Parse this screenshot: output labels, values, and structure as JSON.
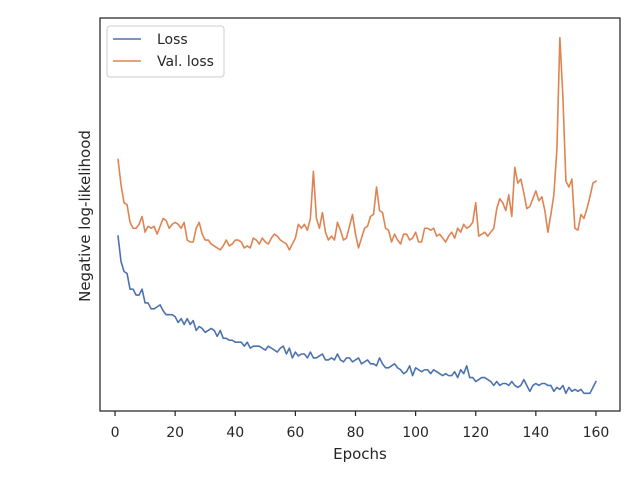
{
  "chart_data": {
    "type": "line",
    "xlabel": "Epochs",
    "ylabel": "Negative log-likelihood",
    "xlim": [
      -5,
      168
    ],
    "ylim": [
      0,
      100
    ],
    "xticks": [
      0,
      20,
      40,
      60,
      80,
      100,
      120,
      140,
      160
    ],
    "yticks_labeled": false,
    "grid": false,
    "legend_position": "top-left",
    "series": [
      {
        "name": "Loss",
        "color": "#4c72b0",
        "x": [
          1,
          2,
          3,
          4,
          5,
          6,
          7,
          8,
          9,
          10,
          11,
          12,
          13,
          14,
          15,
          16,
          17,
          18,
          19,
          20,
          21,
          22,
          23,
          24,
          25,
          26,
          27,
          28,
          29,
          30,
          31,
          32,
          33,
          34,
          35,
          36,
          37,
          38,
          39,
          40,
          41,
          42,
          43,
          44,
          45,
          46,
          47,
          48,
          49,
          50,
          51,
          52,
          53,
          54,
          55,
          56,
          57,
          58,
          59,
          60,
          61,
          62,
          63,
          64,
          65,
          66,
          67,
          68,
          69,
          70,
          71,
          72,
          73,
          74,
          75,
          76,
          77,
          78,
          79,
          80,
          81,
          82,
          83,
          84,
          85,
          86,
          87,
          88,
          89,
          90,
          91,
          92,
          93,
          94,
          95,
          96,
          97,
          98,
          99,
          100,
          101,
          102,
          103,
          104,
          105,
          106,
          107,
          108,
          109,
          110,
          111,
          112,
          113,
          114,
          115,
          116,
          117,
          118,
          119,
          120,
          121,
          122,
          123,
          124,
          125,
          126,
          127,
          128,
          129,
          130,
          131,
          132,
          133,
          134,
          135,
          136,
          137,
          138,
          139,
          140,
          141,
          142,
          143,
          144,
          145,
          146,
          147,
          148,
          149,
          150,
          151,
          152,
          153,
          154,
          155,
          156,
          157,
          158,
          159,
          160
        ],
        "values": [
          44.5,
          38.0,
          35.5,
          35.0,
          31.0,
          31.0,
          29.5,
          29.5,
          31.0,
          27.5,
          27.5,
          26.0,
          26.0,
          26.5,
          27.0,
          25.5,
          24.5,
          24.5,
          24.5,
          24.0,
          22.5,
          23.5,
          22.0,
          23.5,
          22.0,
          23.0,
          20.5,
          21.5,
          21.0,
          20.0,
          20.5,
          21.0,
          20.5,
          19.0,
          20.5,
          18.5,
          18.5,
          18.0,
          18.0,
          17.5,
          17.5,
          17.5,
          16.5,
          17.5,
          16.0,
          16.5,
          16.5,
          16.5,
          16.0,
          15.5,
          16.5,
          16.0,
          15.5,
          15.0,
          16.0,
          16.5,
          14.5,
          16.0,
          13.5,
          15.0,
          14.0,
          14.5,
          14.5,
          13.5,
          15.0,
          13.5,
          13.5,
          14.0,
          14.5,
          13.0,
          13.0,
          13.5,
          13.0,
          14.5,
          13.0,
          12.5,
          13.5,
          13.5,
          12.5,
          13.0,
          13.5,
          12.0,
          12.5,
          13.0,
          12.0,
          12.0,
          11.5,
          13.5,
          12.0,
          11.0,
          11.0,
          11.5,
          12.0,
          11.0,
          10.5,
          9.5,
          10.0,
          11.5,
          9.0,
          11.0,
          10.5,
          10.0,
          10.5,
          10.5,
          9.5,
          10.5,
          10.0,
          9.5,
          9.0,
          9.5,
          9.0,
          9.0,
          10.0,
          8.5,
          10.5,
          9.5,
          11.5,
          8.5,
          8.5,
          7.5,
          8.0,
          8.5,
          8.5,
          8.0,
          7.5,
          6.5,
          7.5,
          6.5,
          7.0,
          7.0,
          6.5,
          7.5,
          6.5,
          6.0,
          6.5,
          8.0,
          6.5,
          5.0,
          6.5,
          7.0,
          6.5,
          7.0,
          7.0,
          6.5,
          6.5,
          5.0,
          6.0,
          5.5,
          6.5,
          4.5,
          6.0,
          5.0,
          5.5,
          5.0,
          5.5,
          4.5,
          4.5,
          4.5,
          6.0,
          7.5
        ]
      },
      {
        "name": "Val. loss",
        "color": "#dd8452",
        "x": [
          1,
          2,
          3,
          4,
          5,
          6,
          7,
          8,
          9,
          10,
          11,
          12,
          13,
          14,
          15,
          16,
          17,
          18,
          19,
          20,
          21,
          22,
          23,
          24,
          25,
          26,
          27,
          28,
          29,
          30,
          31,
          32,
          33,
          34,
          35,
          36,
          37,
          38,
          39,
          40,
          41,
          42,
          43,
          44,
          45,
          46,
          47,
          48,
          49,
          50,
          51,
          52,
          53,
          54,
          55,
          56,
          57,
          58,
          59,
          60,
          61,
          62,
          63,
          64,
          65,
          66,
          67,
          68,
          69,
          70,
          71,
          72,
          73,
          74,
          75,
          76,
          77,
          78,
          79,
          80,
          81,
          82,
          83,
          84,
          85,
          86,
          87,
          88,
          89,
          90,
          91,
          92,
          93,
          94,
          95,
          96,
          97,
          98,
          99,
          100,
          101,
          102,
          103,
          104,
          105,
          106,
          107,
          108,
          109,
          110,
          111,
          112,
          113,
          114,
          115,
          116,
          117,
          118,
          119,
          120,
          121,
          122,
          123,
          124,
          125,
          126,
          127,
          128,
          129,
          130,
          131,
          132,
          133,
          134,
          135,
          136,
          137,
          138,
          139,
          140,
          141,
          142,
          143,
          144,
          145,
          146,
          147,
          148,
          149,
          150,
          151,
          152,
          153,
          154,
          155,
          156,
          157,
          158,
          159,
          160
        ],
        "values": [
          64.0,
          57.5,
          53.0,
          52.5,
          48.0,
          46.5,
          46.5,
          47.5,
          49.5,
          45.5,
          47.0,
          46.5,
          47.0,
          45.0,
          47.0,
          49.0,
          48.5,
          46.5,
          47.5,
          48.0,
          47.5,
          46.5,
          48.0,
          43.5,
          43.0,
          43.0,
          46.5,
          48.0,
          45.0,
          43.5,
          43.5,
          42.5,
          42.0,
          41.5,
          41.0,
          42.0,
          43.5,
          42.0,
          42.5,
          43.5,
          43.5,
          43.0,
          41.5,
          42.0,
          41.5,
          44.0,
          43.5,
          42.5,
          44.0,
          43.0,
          42.5,
          44.0,
          45.0,
          44.5,
          43.5,
          43.0,
          42.5,
          41.0,
          42.5,
          44.0,
          47.5,
          46.5,
          47.5,
          46.0,
          49.0,
          61.0,
          49.0,
          46.5,
          50.5,
          45.5,
          43.5,
          44.5,
          43.5,
          48.0,
          46.0,
          43.5,
          44.0,
          47.0,
          50.0,
          45.0,
          41.5,
          44.0,
          46.5,
          47.0,
          49.5,
          50.0,
          57.0,
          51.0,
          50.5,
          46.5,
          46.0,
          43.0,
          45.0,
          43.5,
          42.5,
          45.0,
          45.0,
          43.5,
          44.0,
          45.5,
          43.0,
          43.0,
          46.5,
          46.5,
          46.0,
          46.5,
          44.5,
          45.0,
          44.0,
          43.0,
          44.5,
          45.5,
          44.0,
          46.5,
          45.5,
          47.5,
          46.5,
          47.0,
          48.0,
          53.0,
          44.5,
          45.0,
          45.5,
          44.5,
          45.5,
          46.5,
          51.5,
          54.0,
          53.0,
          51.0,
          55.0,
          49.5,
          62.0,
          58.0,
          59.0,
          55.5,
          51.5,
          52.0,
          54.0,
          56.0,
          53.5,
          54.5,
          51.0,
          45.5,
          50.0,
          55.0,
          66.5,
          95.0,
          80.0,
          58.5,
          57.0,
          59.0,
          46.5,
          46.0,
          50.0,
          49.0,
          51.5,
          54.5,
          58.0,
          58.5
        ]
      }
    ]
  }
}
